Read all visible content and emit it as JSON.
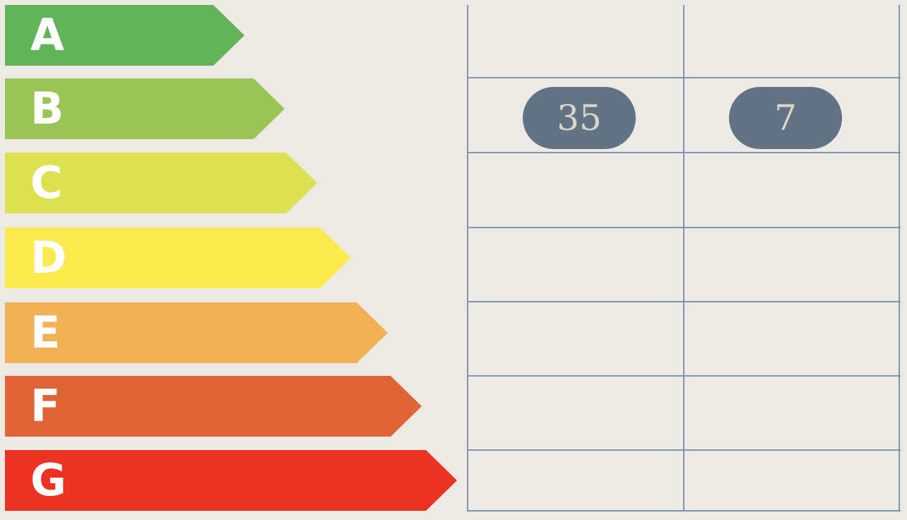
{
  "ratings": [
    {
      "label": "A",
      "color": "#62b35a"
    },
    {
      "label": "B",
      "color": "#9bc456"
    },
    {
      "label": "C",
      "color": "#dbe14f"
    },
    {
      "label": "D",
      "color": "#fbe94d"
    },
    {
      "label": "E",
      "color": "#f0b255"
    },
    {
      "label": "F",
      "color": "#e06536"
    },
    {
      "label": "G",
      "color": "#ec3223"
    }
  ],
  "badges": {
    "current": {
      "value": "35",
      "rating": "B"
    },
    "potential": {
      "value": "7",
      "rating": "B"
    }
  },
  "badge_color": "#627384"
}
